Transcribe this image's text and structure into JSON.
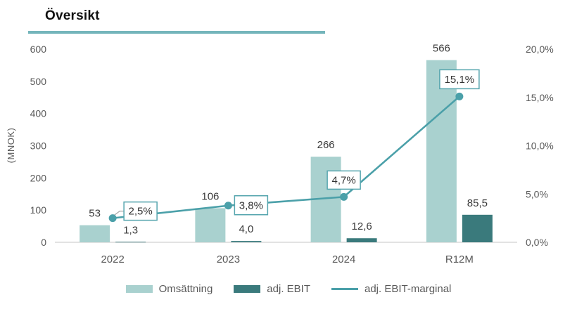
{
  "title": "Översikt",
  "colors": {
    "bar_light": "#a9d1cf",
    "bar_dark": "#3a7a7c",
    "line": "#4ba0a9",
    "underline": "#74b5bb",
    "axis_text": "#595959",
    "value_text": "#3a3a3a",
    "baseline": "#d9d9d9",
    "box_border": "#55a5ae",
    "box_fill": "#ffffff",
    "leader": "#a6a6a6"
  },
  "chart_data": {
    "type": "combo-bar-line",
    "title": "Översikt",
    "categories": [
      "2022",
      "2023",
      "2024",
      "R12M"
    ],
    "series": [
      {
        "name": "Omsättning",
        "type": "bar",
        "axis": "left",
        "values": [
          53,
          106,
          266,
          566
        ],
        "labels": [
          "53",
          "106",
          "266",
          "566"
        ]
      },
      {
        "name": "adj. EBIT",
        "type": "bar",
        "axis": "left",
        "values": [
          1.3,
          4.0,
          12.6,
          85.5
        ],
        "labels": [
          "1,3",
          "4,0",
          "12,6",
          "85,5"
        ]
      },
      {
        "name": "adj. EBIT-marginal",
        "type": "line",
        "axis": "right",
        "values": [
          2.5,
          3.8,
          4.7,
          15.1
        ],
        "labels": [
          "2,5%",
          "3,8%",
          "4,7%",
          "15,1%"
        ]
      }
    ],
    "left_axis": {
      "title": "(MNOK)",
      "range": [
        0,
        600
      ],
      "ticks": [
        0,
        100,
        200,
        300,
        400,
        500,
        600
      ],
      "tick_labels": [
        "0",
        "100",
        "200",
        "300",
        "400",
        "500",
        "600"
      ]
    },
    "right_axis": {
      "range": [
        0,
        20
      ],
      "ticks": [
        0,
        5,
        10,
        15,
        20
      ],
      "tick_labels": [
        "0,0%",
        "5,0%",
        "10,0%",
        "15,0%",
        "20,0%"
      ]
    },
    "legend_position": "bottom",
    "grid": false
  }
}
